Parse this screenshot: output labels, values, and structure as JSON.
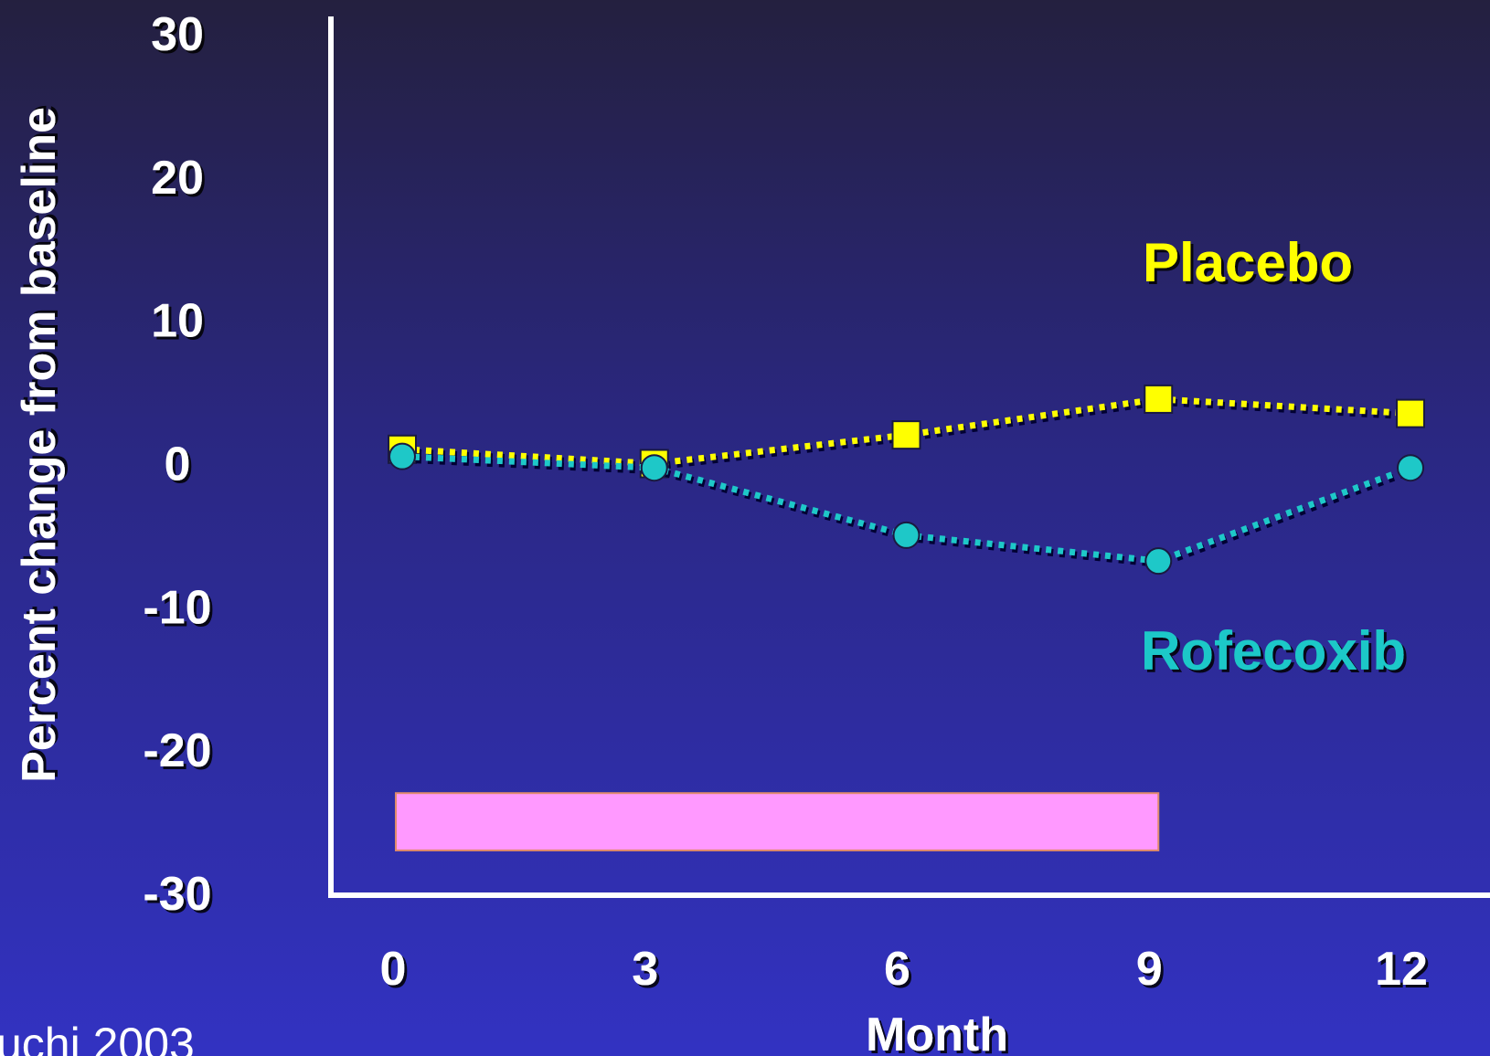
{
  "chart_data": {
    "type": "line",
    "xlabel": "Month",
    "ylabel": "Percent change from baseline",
    "xlim": [
      0,
      12
    ],
    "ylim": [
      -30,
      30
    ],
    "x_ticks": [
      "0",
      "3",
      "6",
      "9",
      "12"
    ],
    "y_ticks": [
      "30",
      "20",
      "10",
      "0",
      "-10",
      "-20",
      "-30"
    ],
    "x": [
      0,
      3,
      6,
      9,
      12
    ],
    "series": [
      {
        "name": "Placebo",
        "color": "#ffff00",
        "marker": "square",
        "line": "dotted",
        "values": [
          1,
          0,
          2,
          4.5,
          3.5
        ]
      },
      {
        "name": "Rofecoxib",
        "color": "#1ec8c8",
        "marker": "circle",
        "line": "dotted",
        "values": [
          0.5,
          -0.3,
          -5,
          -6.8,
          -0.3
        ]
      }
    ],
    "shaded_band": {
      "color": "#ff99ff",
      "x_range": [
        0,
        9
      ],
      "y_range": [
        -27,
        -23
      ]
    },
    "grid": false,
    "legend": "inline labels"
  },
  "citation": "uchi  2003"
}
